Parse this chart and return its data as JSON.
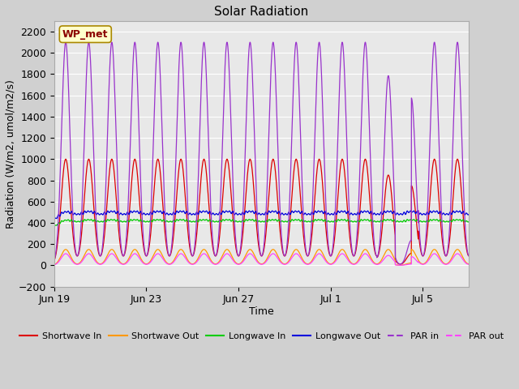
{
  "title": "Solar Radiation",
  "xlabel": "Time",
  "ylabel": "Radiation (W/m2, umol/m2/s)",
  "ylim": [
    -200,
    2300
  ],
  "yticks": [
    -200,
    0,
    200,
    400,
    600,
    800,
    1000,
    1200,
    1400,
    1600,
    1800,
    2000,
    2200
  ],
  "xtick_labels": [
    "Jun 19",
    "Jun 23",
    "Jun 27",
    "Jul 1",
    "Jul 5"
  ],
  "xtick_positions": [
    0,
    4,
    8,
    12,
    16
  ],
  "n_days": 18,
  "figure_bg": "#d0d0d0",
  "plot_bg_color": "#e8e8e8",
  "grid_color": "#ffffff",
  "colors": {
    "shortwave_in": "#dd0000",
    "shortwave_out": "#ff9900",
    "longwave_in": "#00cc00",
    "longwave_out": "#0000dd",
    "par_in": "#9933cc",
    "par_out": "#ff44ff"
  },
  "legend_labels": [
    "Shortwave In",
    "Shortwave Out",
    "Longwave In",
    "Longwave Out",
    "PAR in",
    "PAR out"
  ],
  "watermark_text": "WP_met",
  "watermark_color": "#8B0000",
  "watermark_bg": "#ffffcc",
  "pts_per_day": 288
}
